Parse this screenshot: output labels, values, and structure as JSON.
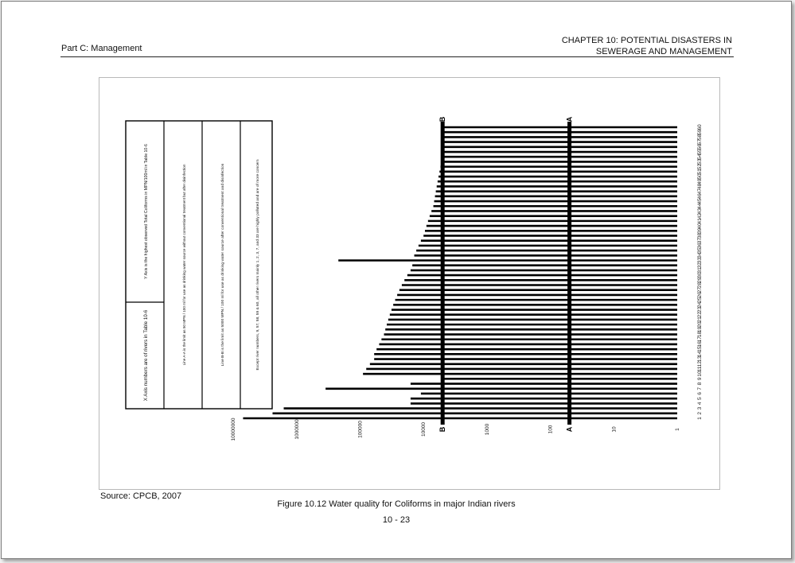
{
  "header": {
    "left": "Part C: Management",
    "right_line1": "CHAPTER 10: POTENTIAL DISASTERS IN",
    "right_line2": "SEWERAGE AND MANAGEMENT"
  },
  "figure": {
    "legend_items": [
      "X Axis numbers are of rivers in Table 10-6",
      "Y Axis is the highest observed Total Coliforms in MPN/100ml in Table 10-6",
      "Line A-A is the limit as 50 MPN / 100 ml for use as drinking water source without conventional treatment but after disinfection",
      "Line B-B is the limit as 5000 MPN / 100 ml for use as drinking water source after conventional treatment and disinfection",
      "Except river numbers, 9, 57, 58, 59 & 60, all other rivers mainly 1, 2, 3, 7, and 33 are highly polluted and are of more concern"
    ],
    "source": "Source: CPCB, 2007",
    "caption": "Figure 10.12  Water quality for Coliforms in major Indian rivers"
  },
  "chart_data": {
    "type": "bar",
    "orientation": "rotated 90 degrees (printed sideways)",
    "scale": "log",
    "ylim": [
      1,
      10000000
    ],
    "y_ticks": [
      "1",
      "10",
      "100",
      "1000",
      "10000",
      "100000",
      "1000000",
      "10000000"
    ],
    "categories": [
      "1",
      "2",
      "3",
      "4",
      "5",
      "6",
      "7",
      "8",
      "9",
      "10",
      "11",
      "12",
      "13",
      "14",
      "15",
      "16",
      "17",
      "18",
      "19",
      "20",
      "21",
      "22",
      "23",
      "24",
      "25",
      "26",
      "27",
      "28",
      "29",
      "30",
      "31",
      "32",
      "33",
      "34",
      "35",
      "36",
      "37",
      "38",
      "39",
      "40",
      "41",
      "42",
      "43",
      "44",
      "45",
      "46",
      "47",
      "48",
      "49",
      "50",
      "51",
      "52",
      "53",
      "54",
      "55",
      "56",
      "57",
      "58",
      "59",
      "60"
    ],
    "values": [
      7000000,
      2400000,
      1600000,
      16000,
      16000,
      11000,
      350000,
      16000,
      5000,
      90000,
      80000,
      70000,
      60000,
      60000,
      55000,
      50000,
      46000,
      42000,
      40000,
      38000,
      36000,
      34000,
      32000,
      30000,
      28000,
      26000,
      24000,
      22000,
      20000,
      18000,
      16000,
      15000,
      220000,
      14000,
      13000,
      12000,
      11000,
      10000,
      9500,
      9000,
      8500,
      8000,
      7500,
      7000,
      6800,
      6600,
      6400,
      6200,
      6000,
      5800,
      5600,
      5400,
      5300,
      5200,
      5100,
      5050,
      5000,
      5000,
      5000,
      5000
    ],
    "reference_lines": [
      {
        "label": "A",
        "value": 50
      },
      {
        "label": "B",
        "value": 5000
      }
    ]
  },
  "page_number": "10 - 23"
}
